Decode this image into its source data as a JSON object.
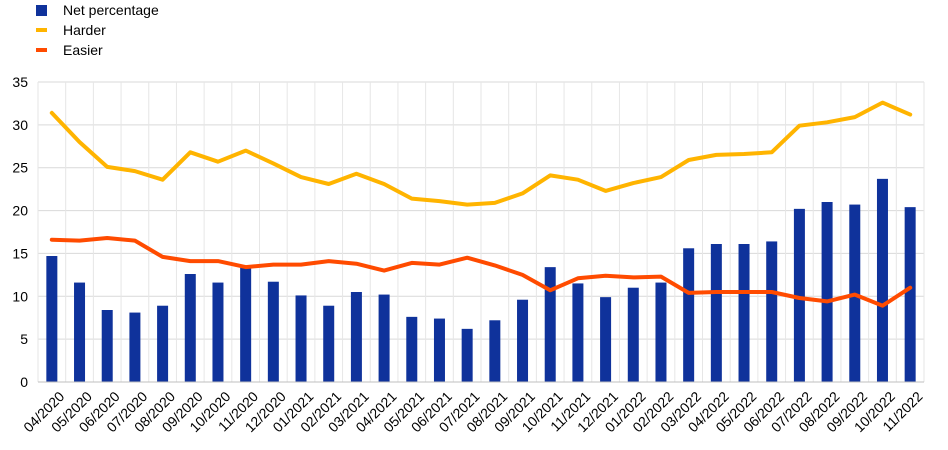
{
  "chart_data": {
    "type": "bar",
    "title": "",
    "xlabel": "",
    "ylabel": "",
    "ylim": [
      0,
      35
    ],
    "yticks": [
      0,
      5,
      10,
      15,
      20,
      25,
      30,
      35
    ],
    "grid": true,
    "legend_position": "top-left",
    "categories": [
      "04/2020",
      "05/2020",
      "06/2020",
      "07/2020",
      "08/2020",
      "09/2020",
      "10/2020",
      "11/2020",
      "12/2020",
      "01/2021",
      "02/2021",
      "03/2021",
      "04/2021",
      "05/2021",
      "06/2021",
      "07/2021",
      "08/2021",
      "09/2021",
      "10/2021",
      "11/2021",
      "12/2021",
      "01/2022",
      "02/2022",
      "03/2022",
      "04/2022",
      "05/2022",
      "06/2022",
      "07/2022",
      "08/2022",
      "09/2022",
      "10/2022",
      "11/2022"
    ],
    "series": [
      {
        "name": "Net percentage",
        "kind": "bar",
        "color": "#0f329b",
        "values": [
          14.7,
          11.6,
          8.4,
          8.1,
          8.9,
          12.6,
          11.6,
          13.4,
          11.7,
          10.1,
          8.9,
          10.5,
          10.2,
          7.6,
          7.4,
          6.2,
          7.2,
          9.6,
          13.4,
          11.5,
          9.9,
          11.0,
          11.6,
          15.6,
          16.1,
          16.1,
          16.4,
          20.2,
          21.0,
          20.7,
          23.7,
          20.4
        ]
      },
      {
        "name": "Harder",
        "kind": "line",
        "color": "#ffb400",
        "values": [
          31.4,
          28.0,
          25.1,
          24.6,
          23.6,
          26.8,
          25.7,
          27.0,
          25.5,
          23.9,
          23.1,
          24.3,
          23.1,
          21.4,
          21.1,
          20.7,
          20.9,
          22.0,
          24.1,
          23.6,
          22.3,
          23.2,
          23.9,
          25.9,
          26.5,
          26.6,
          26.8,
          29.9,
          30.3,
          30.9,
          32.6,
          31.2
        ]
      },
      {
        "name": "Easier",
        "kind": "line",
        "color": "#ff4b00",
        "values": [
          16.6,
          16.5,
          16.8,
          16.5,
          14.6,
          14.1,
          14.1,
          13.4,
          13.7,
          13.7,
          14.1,
          13.8,
          13.0,
          13.9,
          13.7,
          14.5,
          13.6,
          12.5,
          10.7,
          12.1,
          12.4,
          12.2,
          12.3,
          10.4,
          10.5,
          10.5,
          10.5,
          9.8,
          9.4,
          10.2,
          8.9,
          11.0
        ]
      }
    ]
  }
}
